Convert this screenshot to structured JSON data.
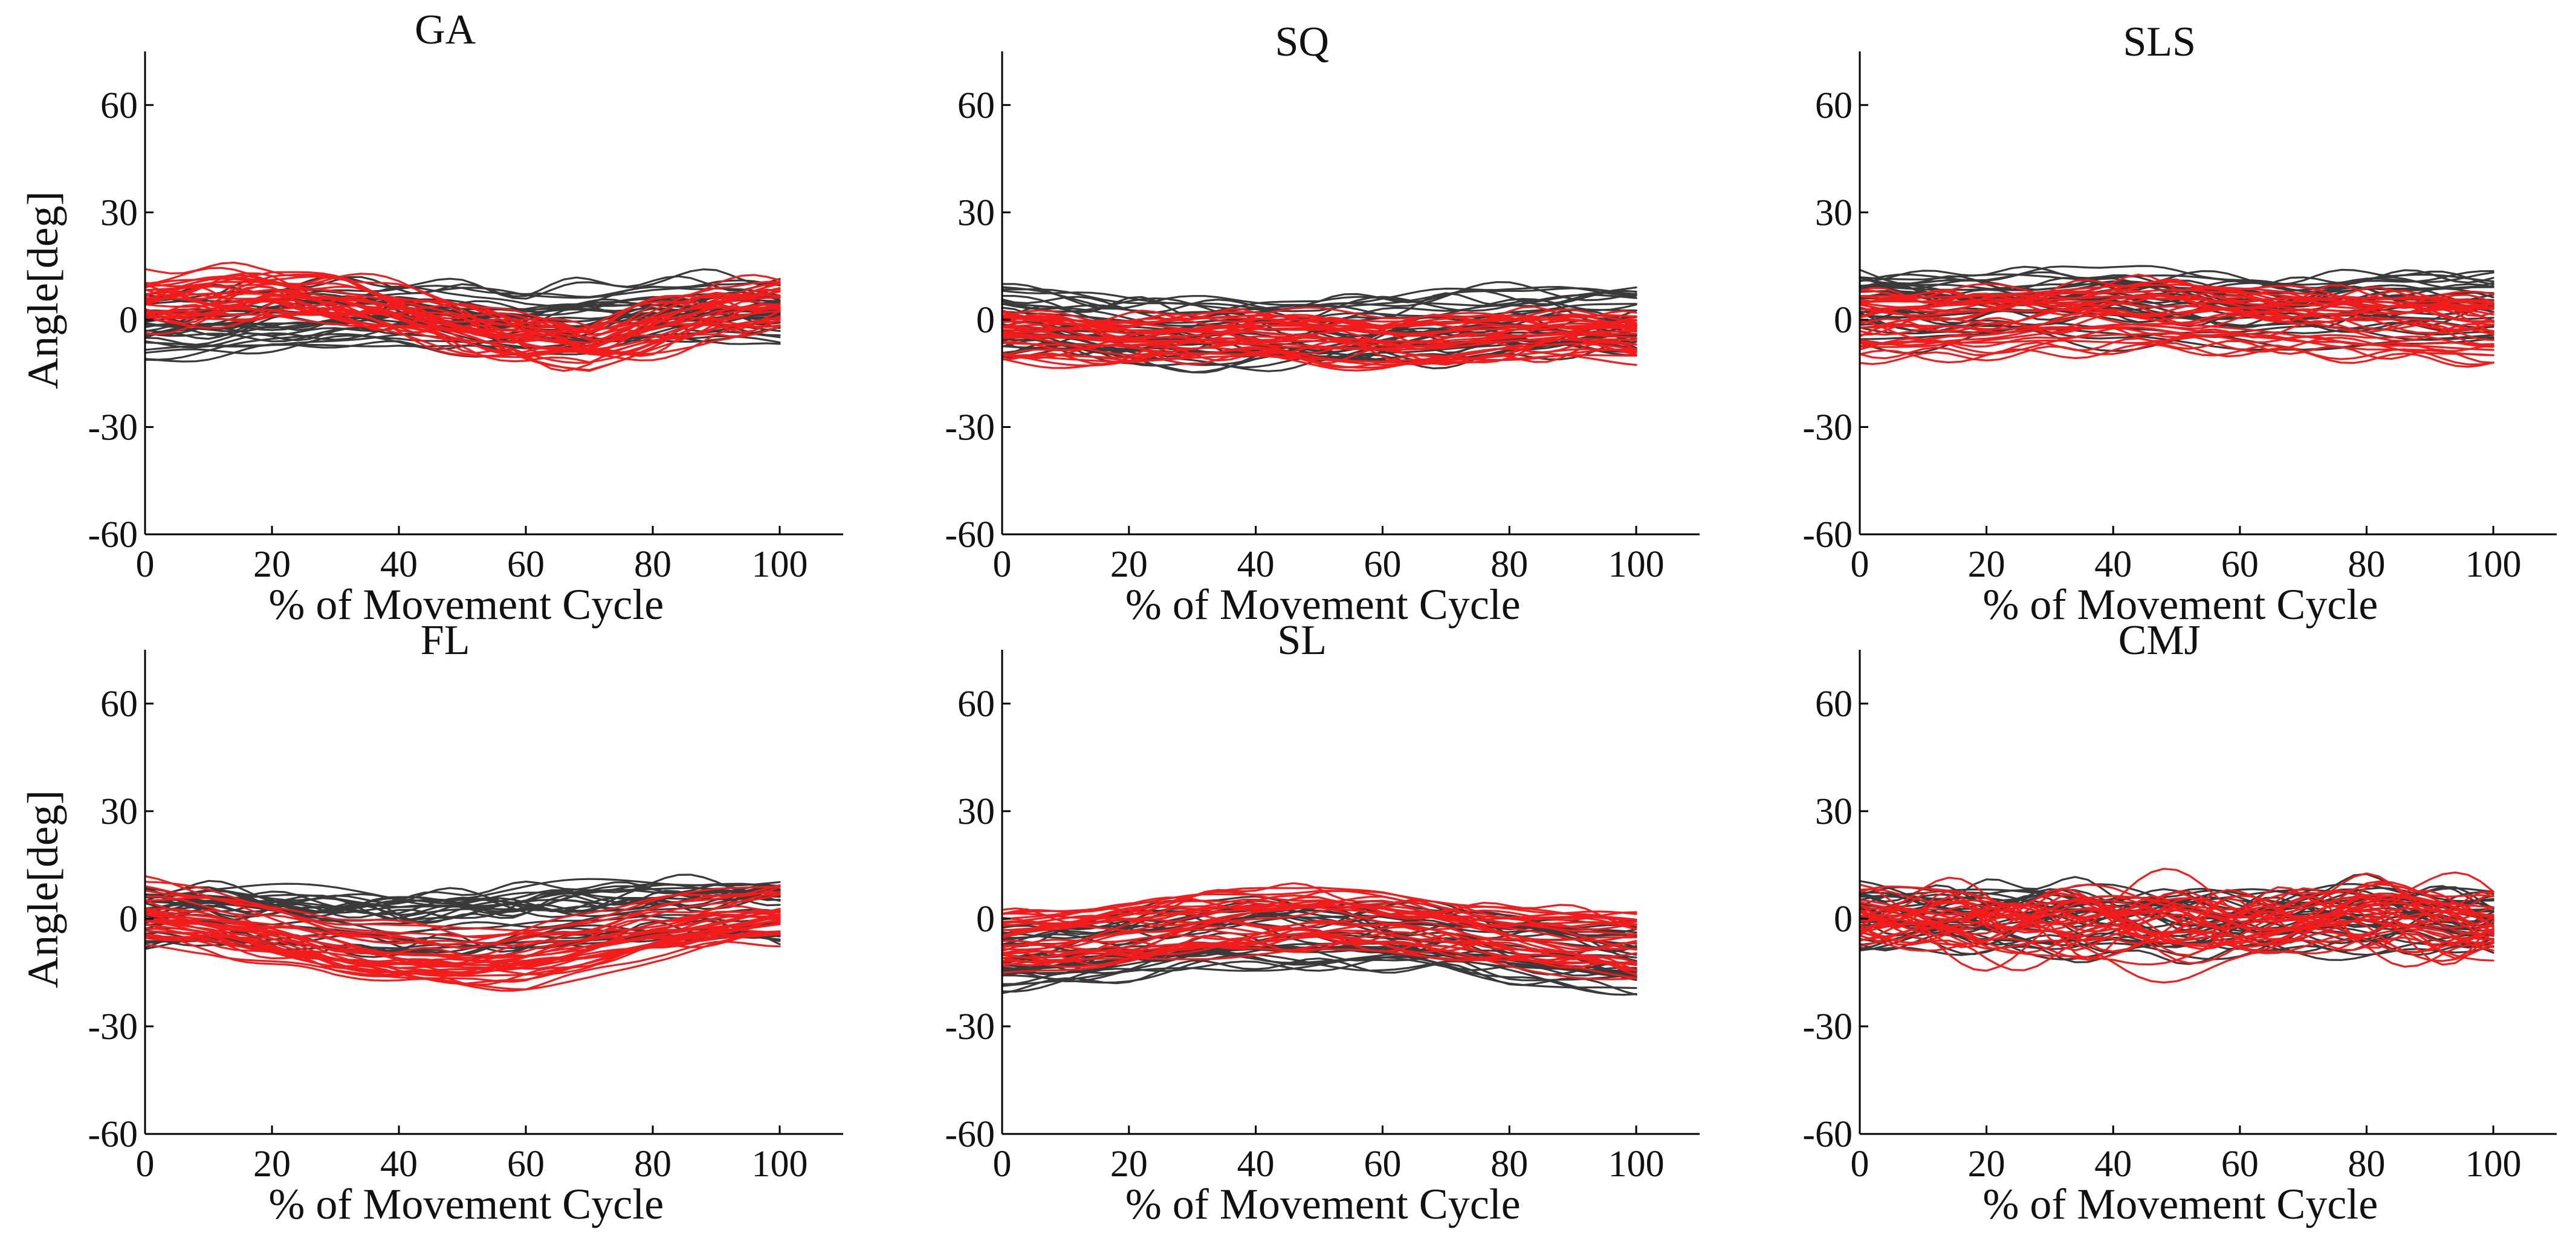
{
  "colors": {
    "group_a": "#3a3a3a",
    "group_b": "#f21c1c"
  },
  "chart_data": [
    {
      "type": "line",
      "title": "GA",
      "xlabel": "% of Movement Cycle",
      "ylabel": "Angle[deg]",
      "xlim": [
        0,
        110
      ],
      "ylim": [
        -60,
        75
      ],
      "xticks": [
        "0",
        "20",
        "40",
        "60",
        "80",
        "100"
      ],
      "yticks": [
        "-60",
        "-30",
        "0",
        "30",
        "60"
      ],
      "series": [
        {
          "name": "group_a",
          "n_traces": 30,
          "x": [
            0,
            10,
            20,
            30,
            40,
            50,
            60,
            70,
            80,
            90,
            100
          ],
          "mean": [
            -2,
            -1,
            0,
            1,
            2,
            1,
            -1,
            0,
            2,
            3,
            2
          ],
          "spread": 9,
          "wiggle": 3
        },
        {
          "name": "group_b",
          "n_traces": 30,
          "x": [
            0,
            10,
            20,
            30,
            40,
            50,
            60,
            70,
            80,
            90,
            100
          ],
          "mean": [
            6,
            7,
            8,
            6,
            3,
            -1,
            -5,
            -7,
            -2,
            3,
            4
          ],
          "spread": 6,
          "wiggle": 4
        }
      ]
    },
    {
      "type": "line",
      "title": "SQ",
      "xlabel": "% of Movement Cycle",
      "ylabel": "",
      "xlim": [
        0,
        110
      ],
      "ylim": [
        -60,
        75
      ],
      "xticks": [
        "0",
        "20",
        "40",
        "60",
        "80",
        "100"
      ],
      "yticks": [
        "-60",
        "-30",
        "0",
        "30",
        "60"
      ],
      "series": [
        {
          "name": "group_a",
          "n_traces": 30,
          "x": [
            0,
            10,
            20,
            30,
            40,
            50,
            60,
            70,
            80,
            90,
            100
          ],
          "mean": [
            0,
            -1,
            -2,
            -3,
            -3,
            -4,
            -2,
            -1,
            0,
            0,
            0
          ],
          "spread": 9,
          "wiggle": 3
        },
        {
          "name": "group_b",
          "n_traces": 30,
          "x": [
            0,
            10,
            20,
            30,
            40,
            50,
            60,
            70,
            80,
            90,
            100
          ],
          "mean": [
            -4,
            -5,
            -6,
            -5,
            -4,
            -5,
            -6,
            -6,
            -5,
            -4,
            -4
          ],
          "spread": 6,
          "wiggle": 3
        }
      ]
    },
    {
      "type": "line",
      "title": "SLS",
      "xlabel": "% of Movement Cycle",
      "ylabel": "",
      "xlim": [
        0,
        110
      ],
      "ylim": [
        -60,
        75
      ],
      "xticks": [
        "0",
        "20",
        "40",
        "60",
        "80",
        "100"
      ],
      "yticks": [
        "-60",
        "-30",
        "0",
        "30",
        "60"
      ],
      "series": [
        {
          "name": "group_a",
          "n_traces": 30,
          "x": [
            0,
            10,
            20,
            30,
            40,
            50,
            60,
            70,
            80,
            90,
            100
          ],
          "mean": [
            4,
            3,
            3,
            4,
            4,
            3,
            2,
            2,
            3,
            3,
            3
          ],
          "spread": 10,
          "wiggle": 3
        },
        {
          "name": "group_b",
          "n_traces": 30,
          "x": [
            0,
            10,
            20,
            30,
            40,
            50,
            60,
            70,
            80,
            90,
            100
          ],
          "mean": [
            -2,
            -2,
            -1,
            0,
            1,
            1,
            0,
            -1,
            -2,
            -2,
            -3
          ],
          "spread": 9,
          "wiggle": 3
        }
      ]
    },
    {
      "type": "line",
      "title": "FL",
      "xlabel": "% of Movement Cycle",
      "ylabel": "Angle[deg]",
      "xlim": [
        0,
        110
      ],
      "ylim": [
        -60,
        75
      ],
      "xticks": [
        "0",
        "20",
        "40",
        "60",
        "80",
        "100"
      ],
      "yticks": [
        "-60",
        "-30",
        "0",
        "30",
        "60"
      ],
      "series": [
        {
          "name": "group_a",
          "n_traces": 30,
          "x": [
            0,
            10,
            20,
            30,
            40,
            50,
            60,
            70,
            80,
            90,
            100
          ],
          "mean": [
            0,
            1,
            0,
            -1,
            -2,
            -1,
            0,
            1,
            2,
            3,
            2
          ],
          "spread": 9,
          "wiggle": 3
        },
        {
          "name": "group_b",
          "n_traces": 30,
          "x": [
            0,
            10,
            20,
            30,
            40,
            50,
            60,
            70,
            80,
            90,
            100
          ],
          "mean": [
            2,
            0,
            -4,
            -8,
            -10,
            -11,
            -10,
            -7,
            -3,
            0,
            2
          ],
          "spread": 8,
          "wiggle": 2
        }
      ]
    },
    {
      "type": "line",
      "title": "SL",
      "xlabel": "% of Movement Cycle",
      "ylabel": "",
      "xlim": [
        0,
        110
      ],
      "ylim": [
        -60,
        75
      ],
      "xticks": [
        "0",
        "20",
        "40",
        "60",
        "80",
        "100"
      ],
      "yticks": [
        "-60",
        "-30",
        "0",
        "30",
        "60"
      ],
      "series": [
        {
          "name": "group_a",
          "n_traces": 30,
          "x": [
            0,
            10,
            20,
            30,
            40,
            50,
            60,
            70,
            80,
            90,
            100
          ],
          "mean": [
            -10,
            -9,
            -7,
            -5,
            -4,
            -4,
            -4,
            -5,
            -8,
            -10,
            -11
          ],
          "spread": 9,
          "wiggle": 3
        },
        {
          "name": "group_b",
          "n_traces": 30,
          "x": [
            0,
            10,
            20,
            30,
            40,
            50,
            60,
            70,
            80,
            90,
            100
          ],
          "mean": [
            -7,
            -6,
            -4,
            -2,
            -1,
            0,
            -1,
            -3,
            -5,
            -7,
            -8
          ],
          "spread": 8,
          "wiggle": 3
        }
      ]
    },
    {
      "type": "line",
      "title": "CMJ",
      "xlabel": "% of Movement Cycle",
      "ylabel": "",
      "xlim": [
        0,
        110
      ],
      "ylim": [
        -60,
        75
      ],
      "xticks": [
        "0",
        "20",
        "40",
        "60",
        "80",
        "100"
      ],
      "yticks": [
        "-60",
        "-30",
        "0",
        "30",
        "60"
      ],
      "series": [
        {
          "name": "group_a",
          "n_traces": 30,
          "x": [
            0,
            10,
            20,
            30,
            40,
            50,
            60,
            70,
            80,
            90,
            100
          ],
          "mean": [
            0,
            -1,
            -1,
            -1,
            -1,
            -2,
            -2,
            -1,
            -1,
            -1,
            -1
          ],
          "spread": 8,
          "wiggle": 4
        },
        {
          "name": "group_b",
          "n_traces": 30,
          "x": [
            0,
            10,
            20,
            30,
            40,
            50,
            60,
            70,
            80,
            90,
            100
          ],
          "mean": [
            -2,
            -2,
            -3,
            -2,
            -1,
            -2,
            -3,
            -2,
            -1,
            -2,
            -2
          ],
          "spread": 7,
          "wiggle": 7
        }
      ]
    }
  ]
}
